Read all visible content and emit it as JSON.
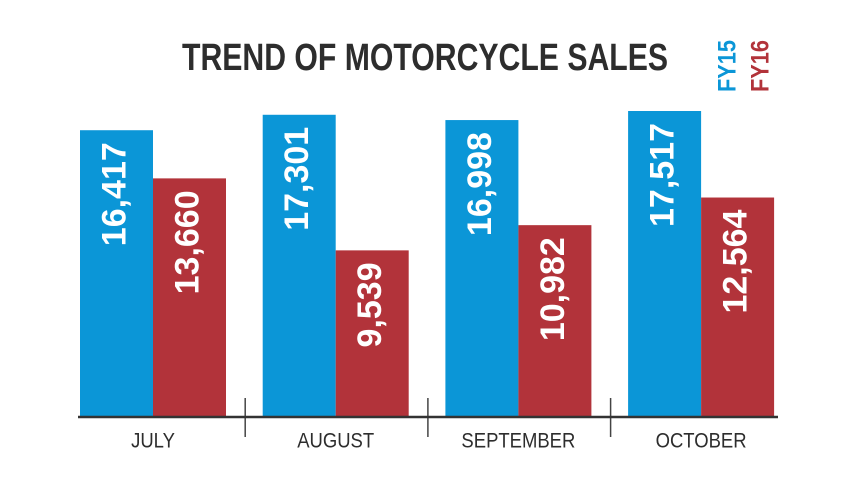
{
  "chart_data": {
    "type": "bar",
    "title": "TREND OF MOTORCYCLE SALES",
    "categories": [
      "JULY",
      "AUGUST",
      "SEPTEMBER",
      "OCTOBER"
    ],
    "series": [
      {
        "name": "FY15",
        "color": "#0b96d7",
        "values": [
          16417,
          17301,
          16998,
          17517
        ],
        "value_labels": [
          "16,417",
          "17,301",
          "16,998",
          "17,517"
        ]
      },
      {
        "name": "FY16",
        "color": "#b2333a",
        "values": [
          13660,
          9539,
          10982,
          12564
        ],
        "value_labels": [
          "13,660",
          "9,539",
          "10,982",
          "12,564"
        ]
      }
    ]
  }
}
